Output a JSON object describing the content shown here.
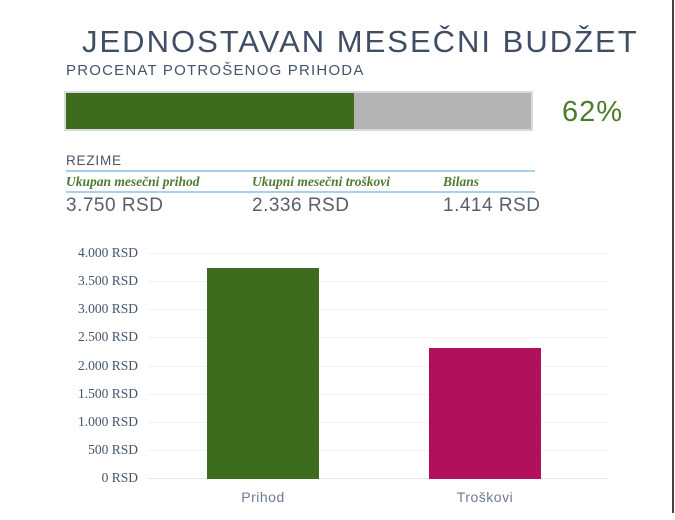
{
  "header": {
    "title": "JEDNOSTAVAN MESEČNI BUDŽET"
  },
  "progress": {
    "label": "PROCENAT POTROŠENOG PRIHODA",
    "percent": 62,
    "value_label": "62%",
    "fill_color": "#3e6c1e",
    "track_color": "#b3b3b3",
    "text_color": "#4e7b2f"
  },
  "summary": {
    "title": "REZIME",
    "columns": [
      {
        "label": "Ukupan mesečni prihod",
        "value": "3.750 RSD"
      },
      {
        "label": "Ukupni mesečni troškovi",
        "value": "2.336 RSD"
      },
      {
        "label": "Bilans",
        "value": "1.414 RSD"
      }
    ]
  },
  "chart_data": {
    "type": "bar",
    "title": "",
    "xlabel": "",
    "ylabel": "",
    "categories": [
      "Prihod",
      "Troškovi"
    ],
    "values": [
      3750,
      2336
    ],
    "bar_colors": [
      "#3e6c1e",
      "#b1105c"
    ],
    "unit": "RSD",
    "ylim": [
      0,
      4000
    ],
    "tick_step": 500,
    "grid": true,
    "legend": "none",
    "ylabel_ticks": [
      "4.000 RSD",
      "3.500 RSD",
      "3.000 RSD",
      "2.500 RSD",
      "2.000 RSD",
      "1.500 RSD",
      "1.000 RSD",
      "500 RSD",
      "0 RSD"
    ]
  },
  "colors": {
    "accent_green": "#3e6c1e",
    "accent_magenta": "#b1105c",
    "heading_slate": "#3f4d65",
    "rule_blue": "#a9cfed",
    "gridline": "#f1f1f1"
  }
}
